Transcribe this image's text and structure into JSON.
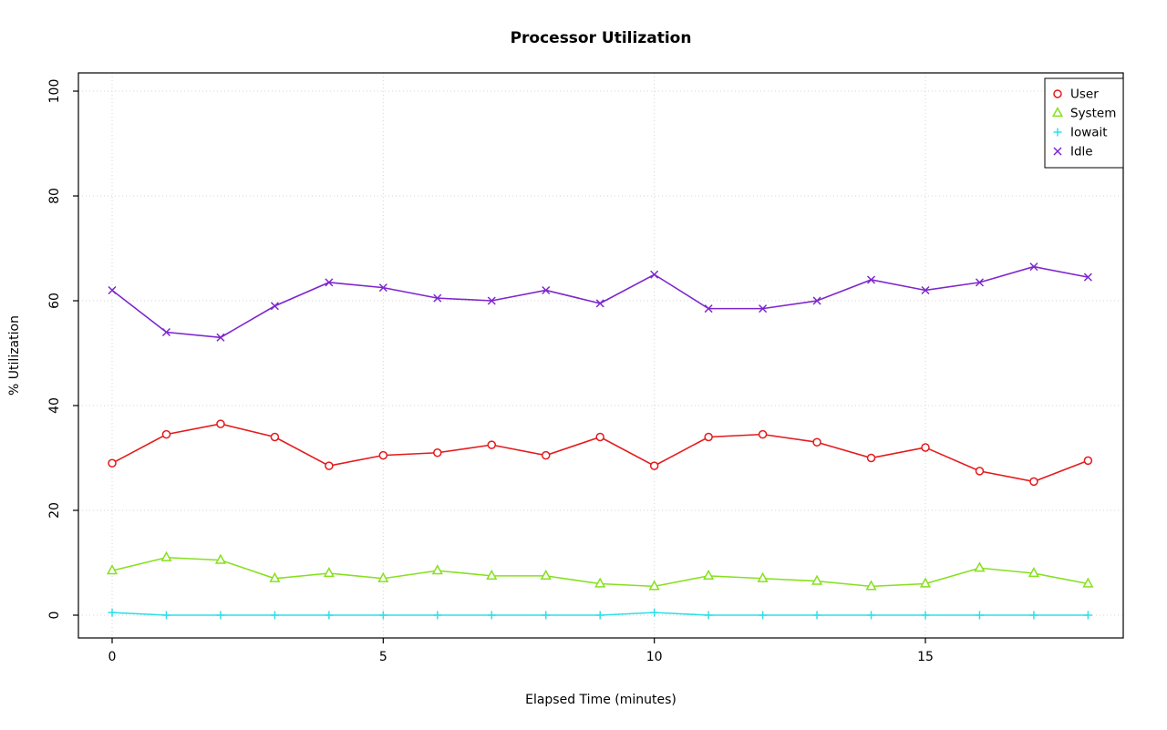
{
  "chart_data": {
    "type": "line",
    "title": "Processor Utilization",
    "xlabel": "Elapsed Time (minutes)",
    "ylabel": "% Utilization",
    "xlim": [
      0,
      18
    ],
    "ylim": [
      0,
      100
    ],
    "xticks": [
      0,
      5,
      10,
      15
    ],
    "yticks": [
      0,
      20,
      40,
      60,
      80,
      100
    ],
    "grid": true,
    "legend_position": "top-right",
    "x": [
      0,
      1,
      2,
      3,
      4,
      5,
      6,
      7,
      8,
      9,
      10,
      11,
      12,
      13,
      14,
      15,
      16,
      17,
      18
    ],
    "series": [
      {
        "name": "User",
        "color": "#e41a1c",
        "marker": "circle",
        "values": [
          29,
          34.5,
          36.5,
          34,
          28.5,
          30.5,
          31,
          32.5,
          30.5,
          34,
          28.5,
          34,
          34.5,
          33,
          30,
          32,
          27.5,
          25.5,
          29.5
        ]
      },
      {
        "name": "System",
        "color": "#86e01e",
        "marker": "triangle",
        "values": [
          8.5,
          11,
          10.5,
          7,
          8,
          7,
          8.5,
          7.5,
          7.5,
          6,
          5.5,
          7.5,
          7,
          6.5,
          5.5,
          6,
          9,
          8,
          6
        ]
      },
      {
        "name": "Iowait",
        "color": "#2ee0e8",
        "marker": "plus",
        "values": [
          0.5,
          0,
          0,
          0,
          0,
          0,
          0,
          0,
          0,
          0,
          0.5,
          0,
          0,
          0,
          0,
          0,
          0,
          0,
          0
        ]
      },
      {
        "name": "Idle",
        "color": "#7d26cd",
        "marker": "x",
        "values": [
          62,
          54,
          53,
          59,
          63.5,
          62.5,
          60.5,
          60,
          62,
          59.5,
          65,
          58.5,
          58.5,
          60,
          64,
          62,
          63.5,
          66.5,
          64.5
        ]
      }
    ]
  }
}
